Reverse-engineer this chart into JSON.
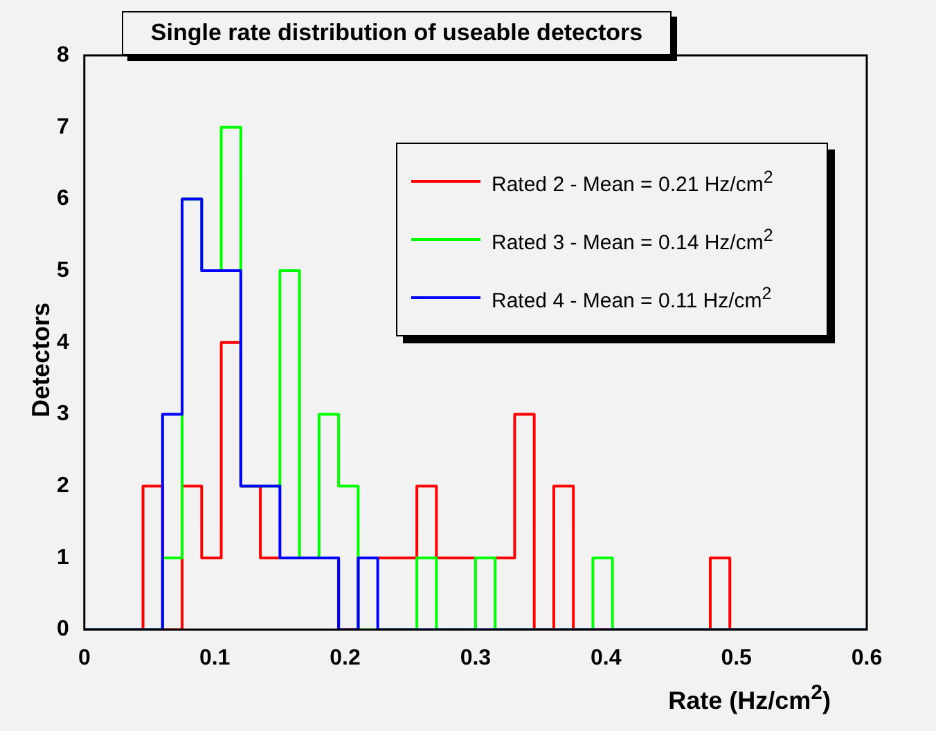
{
  "chart_data": {
    "type": "histogram",
    "title": "Single rate distribution of useable detectors",
    "xlabel": "Rate (Hz/cm$^{2}$)",
    "ylabel": "Detectors",
    "bins": [
      0,
      0.015,
      0.03,
      0.045,
      0.06,
      0.075,
      0.09,
      0.105,
      0.12,
      0.135,
      0.15,
      0.165,
      0.18,
      0.195,
      0.21,
      0.225,
      0.24,
      0.255,
      0.27,
      0.285,
      0.3,
      0.315,
      0.33,
      0.345,
      0.36,
      0.375,
      0.39,
      0.405,
      0.42,
      0.435,
      0.45,
      0.465,
      0.48,
      0.495,
      0.51,
      0.525,
      0.54,
      0.555,
      0.57,
      0.585,
      0.6
    ],
    "series": [
      {
        "name": "Rated 2 - Mean = 0.21 Hz/cm$^{2}$",
        "color": "#ff0000",
        "values": [
          0,
          0,
          0,
          2,
          0,
          2,
          1,
          4,
          2,
          1,
          1,
          1,
          1,
          0,
          1,
          1,
          1,
          2,
          1,
          1,
          1,
          1,
          3,
          0,
          2,
          0,
          0,
          0,
          0,
          0,
          0,
          0,
          1,
          0,
          0,
          0,
          0,
          0,
          0,
          0
        ]
      },
      {
        "name": "Rated 3 - Mean = 0.14 Hz/cm$^{2}$",
        "color": "#00ff00",
        "values": [
          0,
          0,
          0,
          0,
          1,
          6,
          5,
          7,
          2,
          2,
          5,
          1,
          3,
          2,
          0,
          0,
          0,
          1,
          0,
          0,
          1,
          0,
          0,
          0,
          0,
          0,
          1,
          0,
          0,
          0,
          0,
          0,
          0,
          0,
          0,
          0,
          0,
          0,
          0,
          0
        ]
      },
      {
        "name": "Rated 4 - Mean = 0.11 Hz/cm$^{2}$",
        "color": "#0000ff",
        "values": [
          0,
          0,
          0,
          0,
          3,
          6,
          5,
          5,
          2,
          2,
          1,
          1,
          1,
          0,
          1,
          0,
          0,
          0,
          0,
          0,
          0,
          0,
          0,
          0,
          0,
          0,
          0,
          0,
          0,
          0,
          0,
          0,
          0,
          0,
          0,
          0,
          0,
          0,
          0,
          0
        ]
      }
    ],
    "xlim": [
      0,
      0.6
    ],
    "xticks": [
      0,
      0.1,
      0.2,
      0.3,
      0.4,
      0.5,
      0.6
    ],
    "ylim": [
      0,
      8
    ],
    "yticks": [
      0,
      1,
      2,
      3,
      4,
      5,
      6,
      7,
      8
    ],
    "grid": false,
    "legend": "top right"
  }
}
